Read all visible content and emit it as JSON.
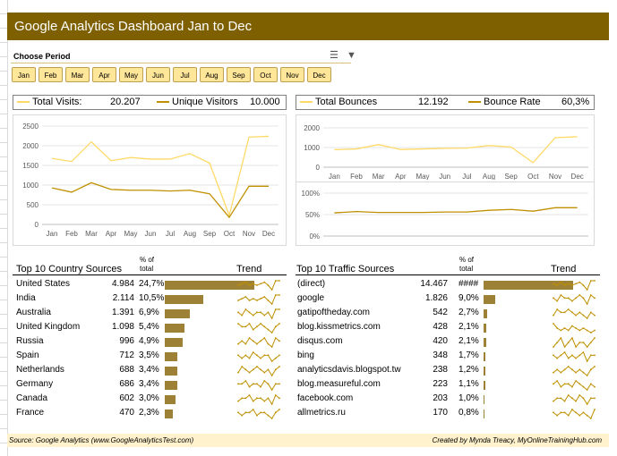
{
  "title": "Google Analytics Dashboard Jan to Dec",
  "period": {
    "label": "Choose Period",
    "months": [
      "Jan",
      "Feb",
      "Mar",
      "Apr",
      "May",
      "Jun",
      "Jul",
      "Aug",
      "Sep",
      "Oct",
      "Nov",
      "Dec"
    ],
    "icons": [
      "multi-select-icon",
      "clear-filter-icon"
    ]
  },
  "kpis": {
    "total_visits_label": "Total Visits:",
    "total_visits_value": "20.207",
    "unique_visitors_label": "Unique Visitors",
    "unique_visitors_value": "10.000",
    "total_bounces_label": "Total Bounces",
    "total_bounces_value": "12.192",
    "bounce_rate_label": "Bounce Rate",
    "bounce_rate_value": "60,3%"
  },
  "colors": {
    "title_bg": "#7f6000",
    "visits_line": "#ffd966",
    "unique_line": "#bf9000",
    "bar": "#9c8136",
    "slicer": "#ffe699",
    "footer": "#fff2cc"
  },
  "chart_data": [
    {
      "type": "line",
      "categories": [
        "Jan",
        "Feb",
        "Mar",
        "Apr",
        "May",
        "Jun",
        "Jul",
        "Aug",
        "Sep",
        "Oct",
        "Nov",
        "Dec"
      ],
      "series": [
        {
          "name": "Total Visits",
          "values": [
            1680,
            1600,
            2100,
            1620,
            1700,
            1660,
            1660,
            1800,
            1560,
            230,
            2220,
            2240
          ]
        },
        {
          "name": "Unique Visitors",
          "values": [
            930,
            820,
            1060,
            890,
            870,
            870,
            850,
            870,
            780,
            180,
            970,
            970
          ]
        }
      ],
      "yticks": [
        "0",
        "500",
        "1000",
        "1500",
        "2000",
        "2500"
      ],
      "ylim": [
        0,
        2500
      ]
    },
    {
      "type": "line",
      "categories": [
        "Jan",
        "Feb",
        "Mar",
        "Apr",
        "May",
        "Jun",
        "Jul",
        "Aug",
        "Sep",
        "Oct",
        "Nov",
        "Dec"
      ],
      "series": [
        {
          "name": "Total Bounces",
          "values": [
            890,
            930,
            1150,
            900,
            930,
            960,
            970,
            1100,
            1030,
            230,
            1500,
            1550
          ]
        }
      ],
      "yticks": [
        "0",
        "1000",
        "2000"
      ],
      "ylim": [
        0,
        2000
      ]
    },
    {
      "type": "line",
      "categories": [
        "Jan",
        "Feb",
        "Mar",
        "Apr",
        "May",
        "Jun",
        "Jul",
        "Aug",
        "Sep",
        "Oct",
        "Nov",
        "Dec"
      ],
      "series": [
        {
          "name": "Bounce Rate",
          "values": [
            54,
            57,
            55,
            55,
            55,
            56,
            56,
            60,
            62,
            58,
            66,
            66
          ]
        }
      ],
      "yticks": [
        "0%",
        "50%",
        "100%"
      ],
      "ylim": [
        0,
        100
      ]
    }
  ],
  "countries": {
    "title": "Top 10 Country Sources",
    "pct_head": [
      "% of",
      "total"
    ],
    "trend_head": "Trend",
    "rows": [
      {
        "name": "United States",
        "value": "4.984",
        "pct": "24,7%",
        "share": 24.7,
        "trend": [
          5,
          6,
          7,
          5,
          6,
          5,
          6,
          7,
          5,
          2,
          8,
          8
        ]
      },
      {
        "name": "India",
        "value": "2.114",
        "pct": "10,5%",
        "share": 10.5,
        "trend": [
          4,
          5,
          6,
          4,
          5,
          4,
          5,
          6,
          4,
          2,
          7,
          7
        ]
      },
      {
        "name": "Australia",
        "value": "1.391",
        "pct": "6,9%",
        "share": 6.9,
        "trend": [
          5,
          4,
          6,
          5,
          4,
          5,
          5,
          4,
          5,
          3,
          6,
          6
        ]
      },
      {
        "name": "United Kingdom",
        "value": "1.098",
        "pct": "5,4%",
        "share": 5.4,
        "trend": [
          6,
          5,
          5,
          6,
          4,
          5,
          6,
          5,
          4,
          3,
          5,
          6
        ]
      },
      {
        "name": "Russia",
        "value": "996",
        "pct": "4,9%",
        "share": 4.9,
        "trend": [
          4,
          5,
          4,
          6,
          5,
          4,
          5,
          6,
          4,
          3,
          6,
          5
        ]
      },
      {
        "name": "Spain",
        "value": "712",
        "pct": "3,5%",
        "share": 3.5,
        "trend": [
          5,
          4,
          5,
          4,
          6,
          5,
          4,
          5,
          5,
          3,
          4,
          5
        ]
      },
      {
        "name": "Netherlands",
        "value": "688",
        "pct": "3,4%",
        "share": 3.4,
        "trend": [
          4,
          6,
          5,
          4,
          5,
          6,
          5,
          4,
          5,
          3,
          5,
          6
        ]
      },
      {
        "name": "Germany",
        "value": "686",
        "pct": "3,4%",
        "share": 3.4,
        "trend": [
          5,
          5,
          6,
          4,
          5,
          5,
          4,
          6,
          5,
          3,
          5,
          5
        ]
      },
      {
        "name": "Canada",
        "value": "602",
        "pct": "3,0%",
        "share": 3.0,
        "trend": [
          4,
          5,
          5,
          6,
          4,
          5,
          5,
          4,
          5,
          3,
          6,
          5
        ]
      },
      {
        "name": "France",
        "value": "470",
        "pct": "2,3%",
        "share": 2.3,
        "trend": [
          5,
          4,
          5,
          5,
          6,
          4,
          5,
          5,
          4,
          3,
          5,
          6
        ]
      }
    ]
  },
  "traffic": {
    "title": "Top 10 Traffic Sources",
    "pct_head": [
      "% of",
      "total"
    ],
    "trend_head": "Trend",
    "rows": [
      {
        "name": "(direct)",
        "value": "14.467",
        "pct": "####",
        "share": 71.6,
        "trend": [
          6,
          5,
          7,
          5,
          6,
          5,
          6,
          7,
          5,
          2,
          8,
          8
        ]
      },
      {
        "name": "google",
        "value": "1.826",
        "pct": "9,0%",
        "share": 9.0,
        "trend": [
          5,
          4,
          6,
          5,
          5,
          4,
          5,
          6,
          5,
          3,
          6,
          5
        ]
      },
      {
        "name": "gatipoftheday.com",
        "value": "542",
        "pct": "2,7%",
        "share": 2.7,
        "trend": [
          4,
          6,
          5,
          5,
          6,
          5,
          4,
          5,
          4,
          3,
          5,
          4
        ]
      },
      {
        "name": "blog.kissmetrics.com",
        "value": "428",
        "pct": "2,1%",
        "share": 2.1,
        "trend": [
          7,
          5,
          4,
          5,
          4,
          6,
          5,
          4,
          5,
          4,
          3,
          4
        ]
      },
      {
        "name": "disqus.com",
        "value": "420",
        "pct": "2,1%",
        "share": 2.1,
        "trend": [
          4,
          5,
          6,
          4,
          5,
          6,
          4,
          5,
          5,
          4,
          5,
          6
        ]
      },
      {
        "name": "bing",
        "value": "348",
        "pct": "1,7%",
        "share": 1.7,
        "trend": [
          5,
          4,
          5,
          6,
          4,
          5,
          4,
          5,
          6,
          3,
          5,
          5
        ]
      },
      {
        "name": "analyticsdavis.blogspot.tw",
        "value": "238",
        "pct": "1,2%",
        "share": 1.2,
        "trend": [
          4,
          5,
          4,
          5,
          6,
          5,
          4,
          5,
          4,
          3,
          5,
          6
        ]
      },
      {
        "name": "blog.measureful.com",
        "value": "223",
        "pct": "1,1%",
        "share": 1.1,
        "trend": [
          5,
          6,
          4,
          5,
          5,
          4,
          6,
          5,
          4,
          3,
          5,
          4
        ]
      },
      {
        "name": "facebook.com",
        "value": "203",
        "pct": "1,0%",
        "share": 1.0,
        "trend": [
          4,
          5,
          5,
          4,
          6,
          5,
          4,
          6,
          5,
          3,
          5,
          5
        ]
      },
      {
        "name": "allmetrics.ru",
        "value": "170",
        "pct": "0,8%",
        "share": 0.8,
        "trend": [
          5,
          4,
          5,
          5,
          4,
          6,
          5,
          4,
          5,
          4,
          3,
          6
        ]
      }
    ]
  },
  "footer": {
    "left": "Source: Google Analytics (www.GoogleAnalyticsTest.com)",
    "right": "Created by Mynda Treacy, MyOnlineTrainingHub.com"
  }
}
